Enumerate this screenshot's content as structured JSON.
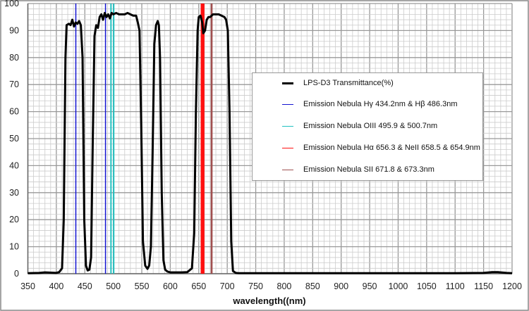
{
  "chart_data": {
    "type": "line",
    "xlabel": "wavelength((nm)",
    "ylabel": "",
    "xlim": [
      350,
      1200
    ],
    "ylim": [
      0,
      100
    ],
    "xticks": [
      350,
      400,
      450,
      500,
      550,
      600,
      650,
      700,
      750,
      800,
      850,
      900,
      950,
      1000,
      1050,
      1100,
      1150,
      1200
    ],
    "yticks": [
      0,
      10,
      20,
      30,
      40,
      50,
      60,
      70,
      80,
      90,
      100
    ],
    "grid": true,
    "legend_position": "right",
    "series": [
      {
        "name": "LPS-D3 Transmittance(%)",
        "color": "#000000",
        "x": [
          350,
          370,
          380,
          400,
          405,
          410,
          413,
          416,
          418,
          422,
          425,
          428,
          431,
          434,
          437,
          440,
          443,
          446,
          449,
          452,
          455,
          458,
          461,
          464,
          467,
          470,
          473,
          476,
          479,
          482,
          485,
          488,
          491,
          494,
          497,
          500,
          505,
          510,
          515,
          520,
          525,
          530,
          535,
          540,
          543,
          546,
          549,
          552,
          556,
          560,
          563,
          566,
          569,
          572,
          575,
          578,
          580,
          582,
          585,
          588,
          591,
          595,
          600,
          610,
          620,
          630,
          638,
          642,
          645,
          648,
          650,
          653,
          656,
          658,
          661,
          664,
          667,
          670,
          675,
          680,
          685,
          690,
          695,
          698,
          701,
          704,
          707,
          710,
          715,
          720,
          750,
          800,
          900,
          1000,
          1100,
          1150,
          1165,
          1175,
          1190,
          1200
        ],
        "y": [
          0.2,
          0.3,
          0.5,
          0.3,
          0.6,
          2,
          20,
          80,
          92,
          92.5,
          92,
          94,
          91.5,
          93,
          92.5,
          93.5,
          92,
          80,
          20,
          3,
          1.2,
          1.5,
          6,
          50,
          88,
          92,
          91,
          95,
          96,
          94,
          96.5,
          95,
          96,
          94.5,
          96.5,
          96,
          96.5,
          96,
          96,
          96,
          96.5,
          96,
          95.5,
          95.5,
          93,
          90,
          55,
          12,
          3,
          1.8,
          3,
          10,
          45,
          85,
          92,
          93.5,
          92,
          80,
          30,
          5,
          1.5,
          0.8,
          0.5,
          0.5,
          0.5,
          0.6,
          2,
          15,
          60,
          90,
          95,
          95.5,
          93,
          89,
          90,
          94,
          95,
          95,
          96,
          96,
          96,
          95.5,
          95,
          94,
          90,
          60,
          12,
          1,
          0.3,
          0.2,
          0.2,
          0.2,
          0.2,
          0.2,
          0.2,
          0.3,
          0.6,
          0.6,
          0.3,
          0.2
        ]
      },
      {
        "name": "Emission Nebula  Hγ 434.2nm  &  Hβ 486.3nm",
        "color": "#1414d2",
        "lines": [
          434.2,
          486.3
        ],
        "width": 1.5
      },
      {
        "name": "Emission Nebula  OIII  495.9 & 500.7nm",
        "color": "#21c1c1",
        "lines": [
          495.9,
          500.7
        ],
        "width": 2
      },
      {
        "name": "Emission Nebula  Hα 656.3 & NeII  658.5 & 654.9nm",
        "color": "#ff1010",
        "lines": [
          654.9,
          656.3,
          658.5
        ],
        "width": 2.5
      },
      {
        "name": "Emission Nebula  SII 671.8 & 673.3nm",
        "color": "#a05050",
        "lines": [
          671.8,
          673.3
        ],
        "width": 1.5
      }
    ]
  }
}
